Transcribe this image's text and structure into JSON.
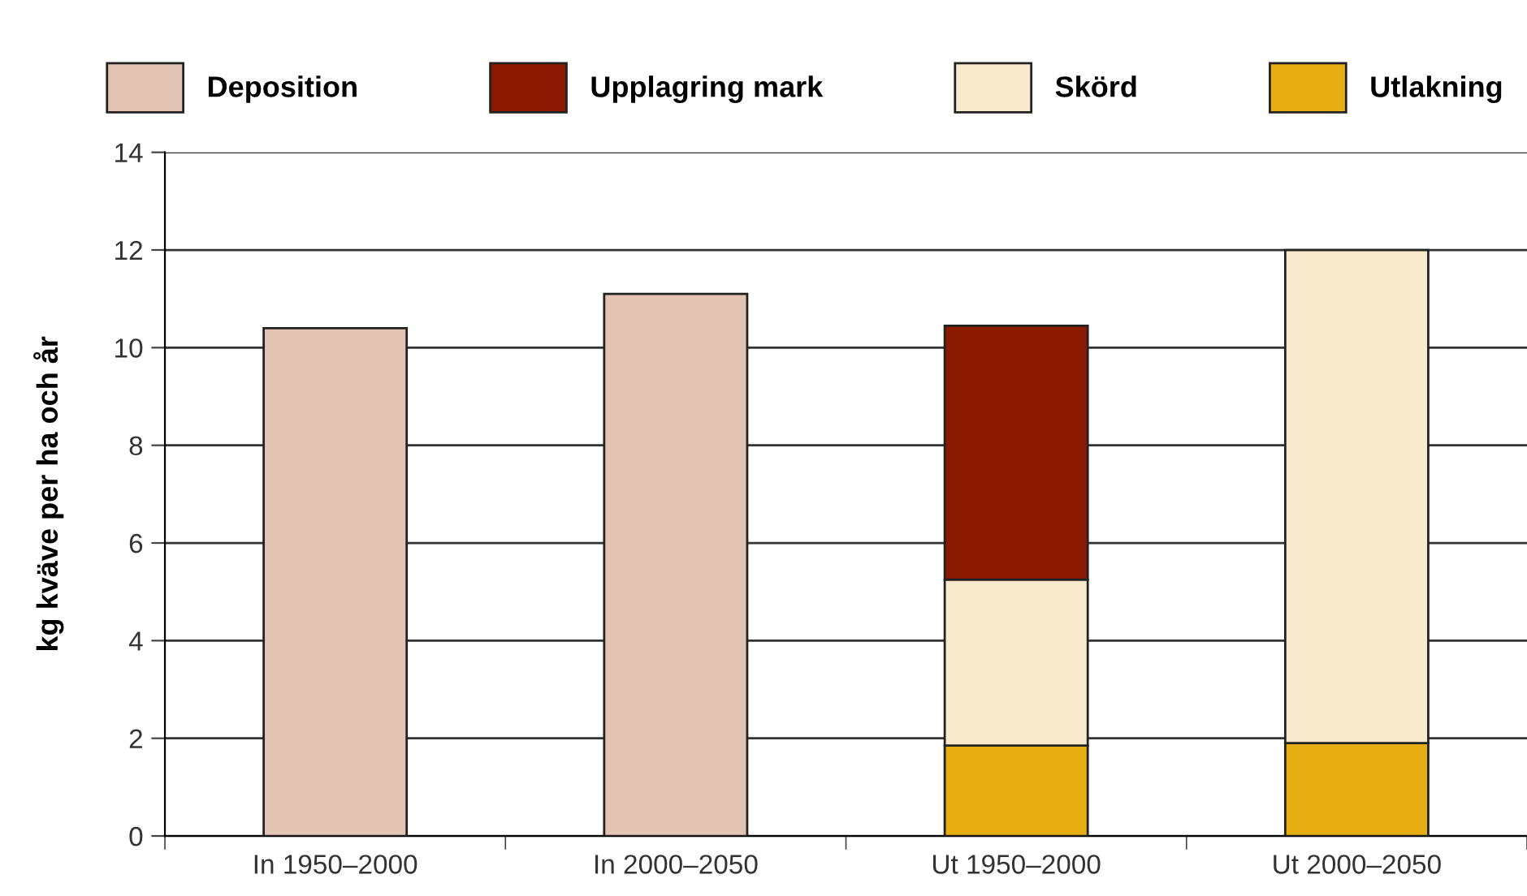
{
  "chart_data": {
    "type": "bar",
    "stacked": true,
    "ylabel": "kg kväve per ha och år",
    "categories": [
      "In 1950–2000",
      "In 2000–2050",
      "Ut 1950–2000",
      "Ut 2000–2050"
    ],
    "series": [
      {
        "name": "Deposition",
        "color": "#e3c3b3",
        "values": [
          10.4,
          11.1,
          null,
          null
        ]
      },
      {
        "name": "Utlakning",
        "color": "#e6ae12",
        "values": [
          null,
          null,
          1.85,
          1.9
        ]
      },
      {
        "name": "Skörd",
        "color": "#f9e9cc",
        "values": [
          null,
          null,
          3.4,
          10.1
        ]
      },
      {
        "name": "Upplagring mark",
        "color": "#8a1b00",
        "values": [
          null,
          null,
          5.2,
          null
        ]
      }
    ],
    "ylim": [
      0,
      14
    ],
    "yticks": [
      0,
      2,
      4,
      6,
      8,
      10,
      12,
      14
    ],
    "grid": "y",
    "legend": "top"
  }
}
